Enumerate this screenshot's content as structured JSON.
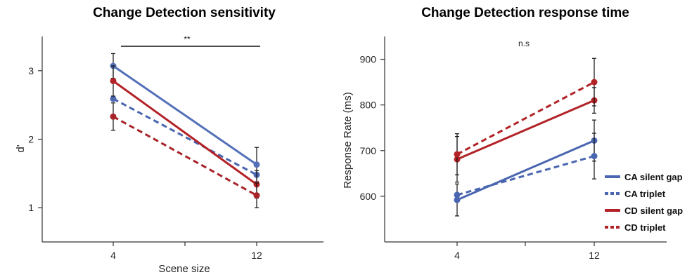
{
  "chart_data": [
    {
      "type": "line",
      "title": "Change Detection sensitivity",
      "xlabel": "Scene size",
      "ylabel": "d'",
      "categories": [
        "4",
        "12"
      ],
      "yticks": [
        "1",
        "2",
        "3"
      ],
      "ylim": [
        0.5,
        3.5
      ],
      "annotation": "**",
      "series": [
        {
          "name": "CA silent gap",
          "values": [
            3.07,
            1.63
          ],
          "errors": [
            0.18,
            0.25
          ],
          "color": "#5470b8",
          "dash": "solid"
        },
        {
          "name": "CA triplet",
          "values": [
            2.59,
            1.48
          ],
          "errors": [
            0.0,
            0.0
          ],
          "color": "#4a66b0",
          "dash": "dashed"
        },
        {
          "name": "CD silent gap",
          "values": [
            2.85,
            1.34
          ],
          "errors": [
            0.22,
            0.2
          ],
          "color": "#b22226",
          "dash": "solid"
        },
        {
          "name": "CD triplet",
          "values": [
            2.33,
            1.18
          ],
          "errors": [
            0.2,
            0.18
          ],
          "color": "#a8232a",
          "dash": "dashed"
        }
      ]
    },
    {
      "type": "line",
      "title": "Change Detection response time",
      "xlabel": "",
      "ylabel": "Response Rate (ms)",
      "categories": [
        "4",
        "12"
      ],
      "yticks": [
        "600",
        "700",
        "800",
        "900"
      ],
      "ylim": [
        500,
        950
      ],
      "annotation": "n.s",
      "legend_position": "right",
      "series": [
        {
          "name": "CA silent gap",
          "values": [
            592,
            722
          ],
          "errors": [
            35,
            45
          ],
          "color": "#4a66b0",
          "dash": "solid"
        },
        {
          "name": "CA triplet",
          "values": [
            603,
            688
          ],
          "errors": [
            0,
            50
          ],
          "color": "#4a66b0",
          "dash": "dashed"
        },
        {
          "name": "CD silent gap",
          "values": [
            681,
            810
          ],
          "errors": [
            50,
            28
          ],
          "color": "#b22226",
          "dash": "solid"
        },
        {
          "name": "CD triplet",
          "values": [
            692,
            850
          ],
          "errors": [
            45,
            52
          ],
          "color": "#b22226",
          "dash": "dashed"
        }
      ]
    }
  ]
}
